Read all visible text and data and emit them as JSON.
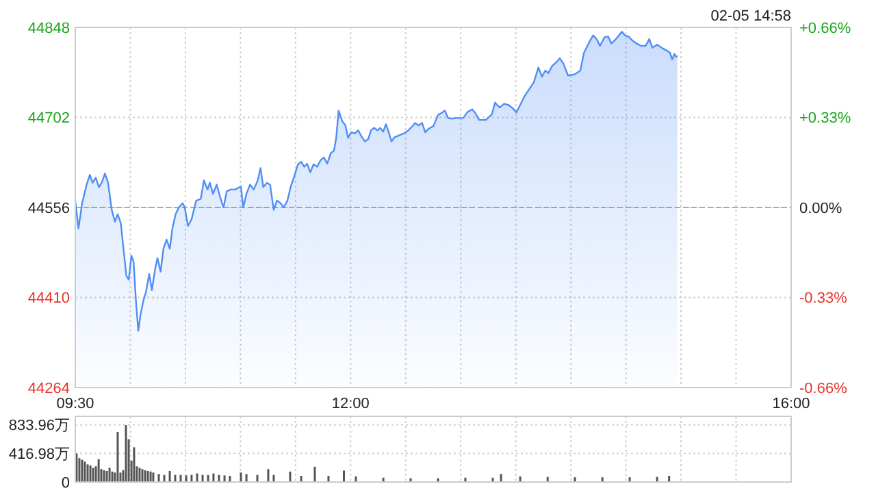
{
  "chart_data": [
    {
      "type": "area",
      "annotations": [
        "02-05 14:58"
      ],
      "x": [
        9.5,
        9.529,
        9.562,
        9.603,
        9.632,
        9.657,
        9.686,
        9.715,
        9.74,
        9.769,
        9.798,
        9.831,
        9.86,
        9.885,
        9.914,
        9.935,
        9.964,
        9.985,
        10.01,
        10.03,
        10.051,
        10.072,
        10.092,
        10.117,
        10.142,
        10.171,
        10.196,
        10.225,
        10.246,
        10.275,
        10.3,
        10.329,
        10.358,
        10.382,
        10.411,
        10.44,
        10.474,
        10.494,
        10.523,
        10.556,
        10.598,
        10.639,
        10.668,
        10.701,
        10.722,
        10.751,
        10.784,
        10.813,
        10.846,
        10.875,
        10.908,
        10.95,
        11.004,
        11.025,
        11.054,
        11.087,
        11.12,
        11.157,
        11.182,
        11.207,
        11.24,
        11.269,
        11.302,
        11.331,
        11.364,
        11.393,
        11.426,
        11.455,
        11.489,
        11.522,
        11.551,
        11.58,
        11.605,
        11.634,
        11.663,
        11.696,
        11.729,
        11.758,
        11.787,
        11.82,
        11.849,
        11.87,
        11.891,
        11.924,
        11.953,
        11.977,
        12.006,
        12.039,
        12.069,
        12.102,
        12.131,
        12.16,
        12.185,
        12.214,
        12.243,
        12.268,
        12.296,
        12.321,
        12.346,
        12.371,
        12.4,
        12.442,
        12.483,
        12.524,
        12.557,
        12.586,
        12.616,
        12.649,
        12.678,
        12.711,
        12.752,
        12.794,
        12.823,
        12.856,
        12.885,
        12.918,
        12.959,
        13.022,
        13.063,
        13.104,
        13.133,
        13.166,
        13.229,
        13.283,
        13.311,
        13.353,
        13.394,
        13.436,
        13.477,
        13.506,
        13.539,
        13.581,
        13.622,
        13.664,
        13.705,
        13.738,
        13.767,
        13.796,
        13.829,
        13.871,
        13.9,
        13.933,
        13.974,
        14.036,
        14.086,
        14.119,
        14.161,
        14.202,
        14.235,
        14.264,
        14.306,
        14.339,
        14.368,
        14.409,
        14.463,
        14.492,
        14.525,
        14.563,
        14.596,
        14.637,
        14.679,
        14.712,
        14.741,
        14.782,
        14.824,
        14.865,
        14.9,
        14.92,
        14.94,
        14.955,
        14.967
      ],
      "series": [
        {
          "color": "#4f8ef5",
          "values": [
            44567,
            44522,
            44563,
            44593,
            44609,
            44596,
            44604,
            44589,
            44596,
            44611,
            44596,
            44552,
            44533,
            44545,
            44530,
            44493,
            44445,
            44439,
            44478,
            44467,
            44404,
            44356,
            44382,
            44404,
            44419,
            44448,
            44422,
            44456,
            44474,
            44452,
            44489,
            44504,
            44489,
            44522,
            44545,
            44556,
            44563,
            44556,
            44526,
            44537,
            44567,
            44570,
            44600,
            44585,
            44596,
            44578,
            44593,
            44574,
            44556,
            44582,
            44585,
            44585,
            44590,
            44556,
            44578,
            44593,
            44585,
            44600,
            44620,
            44589,
            44596,
            44593,
            44552,
            44567,
            44563,
            44556,
            44567,
            44589,
            44607,
            44626,
            44630,
            44622,
            44627,
            44613,
            44626,
            44622,
            44633,
            44637,
            44627,
            44644,
            44648,
            44670,
            44713,
            44696,
            44689,
            44669,
            44678,
            44676,
            44681,
            44670,
            44663,
            44667,
            44681,
            44685,
            44681,
            44685,
            44679,
            44691,
            44678,
            44663,
            44670,
            44673,
            44676,
            44681,
            44687,
            44693,
            44689,
            44693,
            44678,
            44684,
            44688,
            44706,
            44709,
            44713,
            44701,
            44700,
            44701,
            44701,
            44711,
            44715,
            44709,
            44698,
            44698,
            44707,
            44726,
            44718,
            44724,
            44722,
            44716,
            44710,
            44722,
            44737,
            44748,
            44759,
            44783,
            44768,
            44778,
            44774,
            44785,
            44792,
            44798,
            44789,
            44770,
            44772,
            44778,
            44807,
            44822,
            44835,
            44829,
            44818,
            44832,
            44833,
            44822,
            44829,
            44841,
            44835,
            44833,
            44826,
            44822,
            44818,
            44818,
            44829,
            44815,
            44820,
            44815,
            44811,
            44807,
            44796,
            44805,
            44800,
            44802
          ]
        }
      ],
      "xlim": [
        9.5,
        16
      ],
      "xticks": [
        {
          "value": 9.5,
          "label": "09:30"
        },
        {
          "value": 10,
          "label": null
        },
        {
          "value": 10.5,
          "label": null
        },
        {
          "value": 11,
          "label": null
        },
        {
          "value": 11.5,
          "label": null
        },
        {
          "value": 12,
          "label": "12:00"
        },
        {
          "value": 12.5,
          "label": null
        },
        {
          "value": 13,
          "label": null
        },
        {
          "value": 13.5,
          "label": null
        },
        {
          "value": 14,
          "label": null
        },
        {
          "value": 14.5,
          "label": null
        },
        {
          "value": 15,
          "label": null
        },
        {
          "value": 15.5,
          "label": null
        },
        {
          "value": 16,
          "label": "16:00"
        }
      ],
      "ylim": [
        44264,
        44848
      ],
      "yticks": [
        44264,
        44410,
        44556,
        44702,
        44848
      ],
      "y2lim": [
        -0.66,
        0.66
      ],
      "y2ticks": [
        {
          "value": -0.66,
          "label": "-0.66%"
        },
        {
          "value": -0.33,
          "label": "-0.33%"
        },
        {
          "value": 0,
          "label": "0.00%"
        },
        {
          "value": 0.33,
          "label": "+0.33%"
        },
        {
          "value": 0.66,
          "label": "+0.66%"
        }
      ],
      "grid": true,
      "ref_lines": [
        {
          "axis": "y",
          "value": 44556,
          "line_style": "dashed",
          "color": "#aaaaaa"
        }
      ]
    },
    {
      "type": "bar",
      "color": "#555555",
      "x": [
        9.512,
        9.537,
        9.562,
        9.587,
        9.612,
        9.637,
        9.662,
        9.687,
        9.712,
        9.736,
        9.761,
        9.786,
        9.811,
        9.836,
        9.86,
        9.885,
        9.91,
        9.935,
        9.96,
        9.985,
        10.01,
        10.034,
        10.059,
        10.084,
        10.109,
        10.134,
        10.159,
        10.184,
        10.208,
        10.258,
        10.308,
        10.358,
        10.407,
        10.457,
        10.507,
        10.556,
        10.606,
        10.656,
        10.706,
        10.755,
        10.805,
        10.855,
        10.904,
        11.004,
        11.054,
        11.153,
        11.252,
        11.302,
        11.451,
        11.551,
        11.675,
        11.799,
        11.939,
        12.048,
        12.297,
        12.545,
        12.794,
        13.042,
        13.291,
        13.366,
        13.54,
        13.789,
        14.037,
        14.286,
        14.534,
        14.783,
        14.892
      ],
      "values": [
        417,
        348,
        326,
        299,
        257,
        243,
        209,
        229,
        334,
        188,
        174,
        160,
        209,
        153,
        139,
        730,
        139,
        174,
        830,
        626,
        313,
        507,
        229,
        209,
        188,
        174,
        160,
        153,
        139,
        118,
        104,
        160,
        104,
        104,
        97,
        104,
        125,
        104,
        104,
        125,
        104,
        97,
        90,
        139,
        118,
        104,
        188,
        104,
        153,
        90,
        222,
        90,
        167,
        83,
        63,
        56,
        56,
        63,
        63,
        118,
        83,
        76,
        69,
        69,
        69,
        76,
        90
      ],
      "xlim": [
        9.5,
        16
      ],
      "xticks": [
        {
          "value": 9.5,
          "label": null
        },
        {
          "value": 10,
          "label": null
        },
        {
          "value": 10.5,
          "label": null
        },
        {
          "value": 11,
          "label": null
        },
        {
          "value": 11.5,
          "label": null
        },
        {
          "value": 12,
          "label": null
        },
        {
          "value": 12.5,
          "label": null
        },
        {
          "value": 13,
          "label": null
        },
        {
          "value": 13.5,
          "label": null
        },
        {
          "value": 14,
          "label": null
        },
        {
          "value": 14.5,
          "label": null
        },
        {
          "value": 15,
          "label": null
        },
        {
          "value": 15.5,
          "label": null
        },
        {
          "value": 16,
          "label": null
        }
      ],
      "ylim": [
        0,
        960
      ],
      "yticks": [
        0,
        {
          "value": 416.98,
          "label": "416.98万"
        },
        {
          "value": 833.96,
          "label": "833.96万"
        }
      ],
      "grid": true,
      "tick_labels": "y"
    }
  ]
}
